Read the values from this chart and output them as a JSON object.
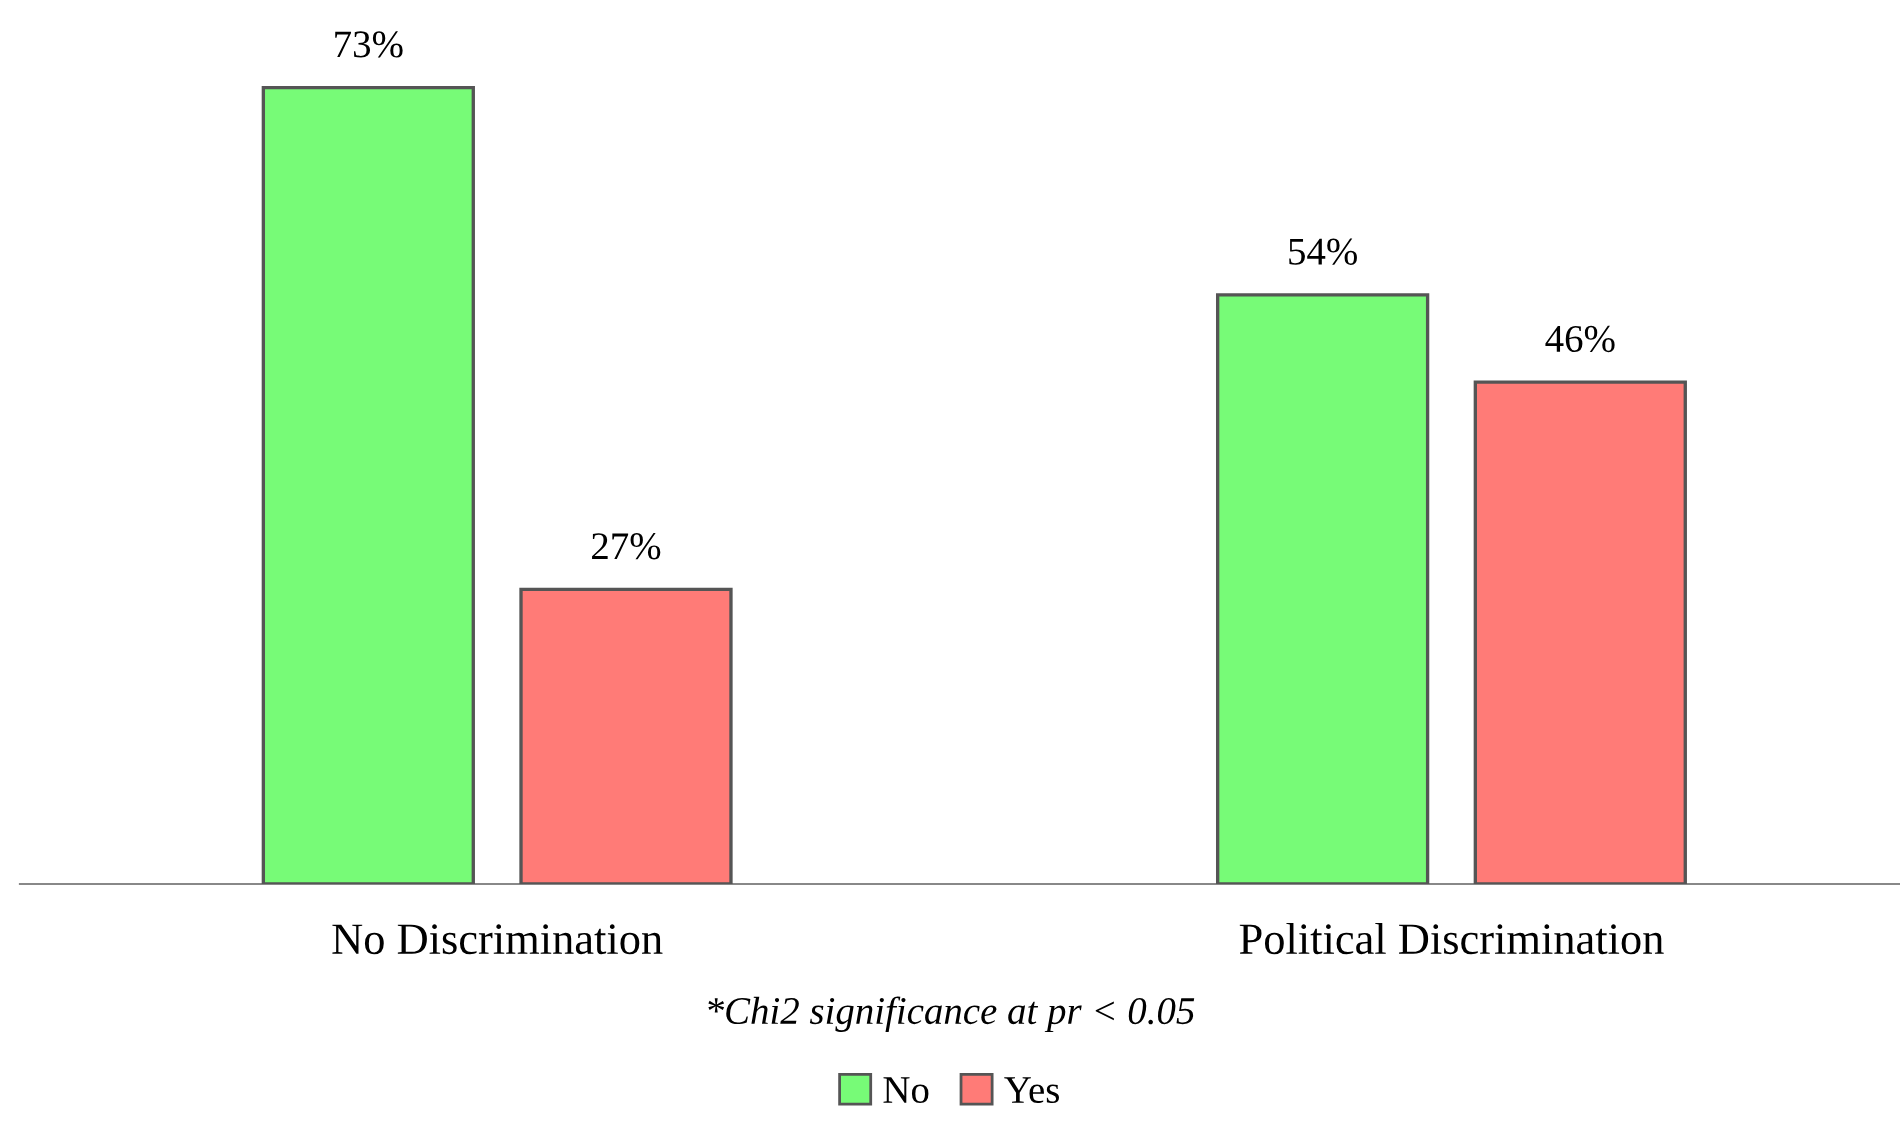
{
  "chart_data": {
    "type": "bar",
    "categories": [
      "No Discrimination",
      "Political Discrimination"
    ],
    "series": [
      {
        "name": "No",
        "color": "#77fb77",
        "values": [
          73,
          54
        ],
        "value_labels": [
          "73%",
          "54%"
        ]
      },
      {
        "name": "Yes",
        "color": "#ff7b77",
        "values": [
          27,
          46
        ],
        "value_labels": [
          "27%",
          "46%"
        ]
      }
    ],
    "tick_labels": "x",
    "grid": false,
    "legend": "bottom",
    "annotations": [
      "*Chi2 significance at pr < 0.05"
    ]
  }
}
